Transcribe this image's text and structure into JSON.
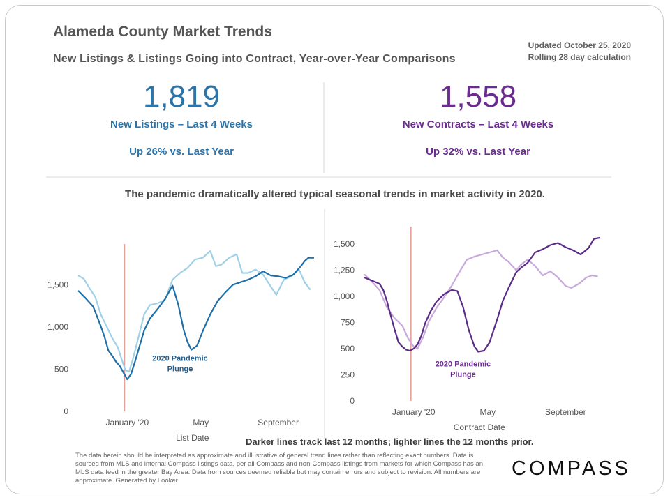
{
  "header": {
    "title": "Alameda County Market Trends",
    "subtitle": "New Listings & Listings Going into Contract, Year-over-Year Comparisons",
    "updated_line1": "Updated October 25, 2020",
    "updated_line2": "Rolling 28 day calculation"
  },
  "kpis": {
    "listings": {
      "value": "1,819",
      "label": "New Listings – Last 4 Weeks",
      "change": "Up 26% vs. Last Year",
      "color": "#2d74a8"
    },
    "contracts": {
      "value": "1,558",
      "label": "New Contracts – Last 4 Weeks",
      "change": "Up 32% vs. Last Year",
      "color": "#6a2c8e"
    }
  },
  "headline": "The pandemic dramatically altered typical seasonal trends in market activity in 2020.",
  "footer": {
    "darker_note": "Darker lines track last 12 months; lighter lines the 12 months prior.",
    "disclaimer": "The data herein should be interpreted as approximate and illustrative of general trend lines rather than reflecting exact numbers. Data is sourced from MLS and internal Compass listings data, per all Compass and non-Compass listings from markets for which Compass has an MLS data feed in the greater Bay Area. Data from sources deemed reliable but may contain errors and subject to revision. All numbers are approximate. Generated by Looker.",
    "logo": "COMPASS"
  },
  "chart_data": [
    {
      "type": "line",
      "xlabel": "List Date",
      "ylabel": "",
      "x_ticks": [
        "January '20",
        "May",
        "September"
      ],
      "x_tick_pos": [
        2.6,
        6.5,
        10.6
      ],
      "x_range": [
        0,
        12.5
      ],
      "y_ticks": [
        0,
        500,
        1000,
        1500
      ],
      "ylim": [
        0,
        1900
      ],
      "marker_x": 2.45,
      "marker_color": "#e8a09a",
      "annotation": {
        "lines": [
          "2020 Pandemic",
          "Plunge"
        ],
        "x": 5.4,
        "y": 600,
        "color": "#1f5d8f"
      },
      "grid": false,
      "legend": "none",
      "series": [
        {
          "color": "#1f6fa6",
          "weight": "dark",
          "points": [
            [
              0,
              1430
            ],
            [
              0.4,
              1340
            ],
            [
              0.8,
              1240
            ],
            [
              1.2,
              1010
            ],
            [
              1.4,
              880
            ],
            [
              1.6,
              720
            ],
            [
              1.8,
              660
            ],
            [
              2.0,
              590
            ],
            [
              2.2,
              540
            ],
            [
              2.4,
              460
            ],
            [
              2.6,
              380
            ],
            [
              2.8,
              440
            ],
            [
              3.0,
              580
            ],
            [
              3.2,
              730
            ],
            [
              3.5,
              960
            ],
            [
              3.8,
              1100
            ],
            [
              4.2,
              1210
            ],
            [
              4.6,
              1330
            ],
            [
              5.0,
              1490
            ],
            [
              5.3,
              1270
            ],
            [
              5.6,
              960
            ],
            [
              5.8,
              820
            ],
            [
              6.0,
              730
            ],
            [
              6.3,
              780
            ],
            [
              6.6,
              950
            ],
            [
              7.0,
              1150
            ],
            [
              7.4,
              1310
            ],
            [
              7.8,
              1410
            ],
            [
              8.2,
              1500
            ],
            [
              8.6,
              1530
            ],
            [
              9.0,
              1560
            ],
            [
              9.4,
              1600
            ],
            [
              9.8,
              1660
            ],
            [
              10.2,
              1610
            ],
            [
              10.6,
              1600
            ],
            [
              11.0,
              1580
            ],
            [
              11.4,
              1620
            ],
            [
              11.8,
              1720
            ],
            [
              12.0,
              1780
            ],
            [
              12.2,
              1820
            ],
            [
              12.5,
              1820
            ]
          ]
        },
        {
          "color": "#9fd0e6",
          "weight": "light",
          "points": [
            [
              0,
              1610
            ],
            [
              0.3,
              1570
            ],
            [
              0.6,
              1460
            ],
            [
              0.9,
              1360
            ],
            [
              1.2,
              1150
            ],
            [
              1.5,
              1010
            ],
            [
              1.8,
              870
            ],
            [
              2.1,
              760
            ],
            [
              2.3,
              620
            ],
            [
              2.5,
              490
            ],
            [
              2.7,
              470
            ],
            [
              2.9,
              620
            ],
            [
              3.2,
              880
            ],
            [
              3.5,
              1150
            ],
            [
              3.8,
              1260
            ],
            [
              4.2,
              1280
            ],
            [
              4.6,
              1320
            ],
            [
              5.0,
              1560
            ],
            [
              5.4,
              1640
            ],
            [
              5.8,
              1700
            ],
            [
              6.2,
              1800
            ],
            [
              6.6,
              1820
            ],
            [
              7.0,
              1900
            ],
            [
              7.3,
              1720
            ],
            [
              7.6,
              1740
            ],
            [
              8.0,
              1820
            ],
            [
              8.4,
              1860
            ],
            [
              8.7,
              1640
            ],
            [
              9.0,
              1640
            ],
            [
              9.4,
              1680
            ],
            [
              9.8,
              1620
            ],
            [
              10.2,
              1480
            ],
            [
              10.5,
              1380
            ],
            [
              10.9,
              1560
            ],
            [
              11.3,
              1600
            ],
            [
              11.7,
              1680
            ],
            [
              12.0,
              1530
            ],
            [
              12.3,
              1440
            ]
          ]
        }
      ]
    },
    {
      "type": "line",
      "xlabel": "Contract Date",
      "ylabel": "",
      "x_ticks": [
        "January '20",
        "May",
        "September"
      ],
      "x_tick_pos": [
        2.6,
        6.5,
        10.6
      ],
      "x_range": [
        0,
        12.5
      ],
      "y_ticks": [
        0,
        250,
        500,
        750,
        1000,
        1250,
        1500
      ],
      "ylim": [
        0,
        1600
      ],
      "marker_x": 2.45,
      "marker_color": "#e8a09a",
      "annotation": {
        "lines": [
          "2020 Pandemic",
          "Plunge"
        ],
        "x": 5.2,
        "y": 330,
        "color": "#6a2c8e"
      },
      "grid": false,
      "legend": "none",
      "series": [
        {
          "color": "#5b2d87",
          "weight": "dark",
          "points": [
            [
              0,
              1180
            ],
            [
              0.4,
              1150
            ],
            [
              0.8,
              1120
            ],
            [
              1.0,
              1060
            ],
            [
              1.2,
              950
            ],
            [
              1.4,
              810
            ],
            [
              1.6,
              680
            ],
            [
              1.8,
              560
            ],
            [
              2.0,
              520
            ],
            [
              2.2,
              490
            ],
            [
              2.4,
              480
            ],
            [
              2.6,
              500
            ],
            [
              2.8,
              540
            ],
            [
              3.0,
              620
            ],
            [
              3.2,
              740
            ],
            [
              3.5,
              860
            ],
            [
              3.8,
              950
            ],
            [
              4.2,
              1020
            ],
            [
              4.6,
              1060
            ],
            [
              4.9,
              1050
            ],
            [
              5.2,
              900
            ],
            [
              5.5,
              680
            ],
            [
              5.8,
              520
            ],
            [
              6.0,
              470
            ],
            [
              6.3,
              480
            ],
            [
              6.6,
              560
            ],
            [
              7.0,
              780
            ],
            [
              7.3,
              960
            ],
            [
              7.6,
              1080
            ],
            [
              8.0,
              1230
            ],
            [
              8.3,
              1280
            ],
            [
              8.6,
              1320
            ],
            [
              9.0,
              1420
            ],
            [
              9.4,
              1450
            ],
            [
              9.8,
              1490
            ],
            [
              10.2,
              1510
            ],
            [
              10.6,
              1470
            ],
            [
              11.0,
              1440
            ],
            [
              11.4,
              1400
            ],
            [
              11.8,
              1460
            ],
            [
              12.1,
              1550
            ],
            [
              12.4,
              1560
            ]
          ]
        },
        {
          "color": "#c8a9dc",
          "weight": "light",
          "points": [
            [
              0,
              1210
            ],
            [
              0.4,
              1140
            ],
            [
              0.8,
              1060
            ],
            [
              1.2,
              890
            ],
            [
              1.6,
              790
            ],
            [
              2.0,
              720
            ],
            [
              2.3,
              600
            ],
            [
              2.6,
              520
            ],
            [
              2.8,
              500
            ],
            [
              3.1,
              610
            ],
            [
              3.4,
              760
            ],
            [
              3.8,
              890
            ],
            [
              4.2,
              990
            ],
            [
              4.6,
              1100
            ],
            [
              5.0,
              1230
            ],
            [
              5.4,
              1350
            ],
            [
              5.8,
              1380
            ],
            [
              6.2,
              1400
            ],
            [
              6.6,
              1420
            ],
            [
              7.0,
              1440
            ],
            [
              7.3,
              1370
            ],
            [
              7.6,
              1330
            ],
            [
              8.0,
              1250
            ],
            [
              8.3,
              1310
            ],
            [
              8.6,
              1350
            ],
            [
              9.0,
              1290
            ],
            [
              9.4,
              1200
            ],
            [
              9.8,
              1240
            ],
            [
              10.2,
              1180
            ],
            [
              10.6,
              1100
            ],
            [
              10.9,
              1080
            ],
            [
              11.3,
              1120
            ],
            [
              11.7,
              1180
            ],
            [
              12.0,
              1200
            ],
            [
              12.3,
              1190
            ]
          ]
        }
      ]
    }
  ]
}
